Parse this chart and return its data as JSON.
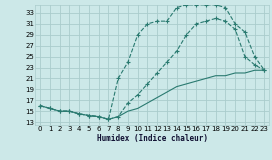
{
  "xlabel": "Humidex (Indice chaleur)",
  "bg_color": "#cce8e8",
  "grid_color": "#aacccc",
  "line_color": "#2a7a70",
  "xlim": [
    -0.5,
    23.5
  ],
  "ylim": [
    12.5,
    34.5
  ],
  "xticks": [
    0,
    1,
    2,
    3,
    4,
    5,
    6,
    7,
    8,
    9,
    10,
    11,
    12,
    13,
    14,
    15,
    16,
    17,
    18,
    19,
    20,
    21,
    22,
    23
  ],
  "yticks": [
    13,
    15,
    17,
    19,
    21,
    23,
    25,
    27,
    29,
    31,
    33
  ],
  "line1_x": [
    0,
    1,
    2,
    3,
    4,
    5,
    6,
    7,
    8,
    9,
    10,
    11,
    12,
    13,
    14,
    15,
    16,
    17,
    18,
    19,
    20,
    21,
    22,
    23
  ],
  "line1_y": [
    16,
    15.5,
    15,
    15,
    14.5,
    14.2,
    14,
    13.5,
    14,
    16.5,
    18,
    20,
    22,
    24,
    26,
    29,
    31,
    31.5,
    32,
    31.5,
    30,
    25,
    23.5,
    22.5
  ],
  "line2_x": [
    0,
    1,
    2,
    3,
    4,
    5,
    6,
    7,
    8,
    9,
    10,
    11,
    12,
    13,
    14,
    15,
    16,
    17,
    18,
    19,
    20,
    21,
    22,
    23
  ],
  "line2_y": [
    16,
    15.5,
    15,
    15,
    14.5,
    14.2,
    14,
    13.5,
    21,
    24,
    29,
    31,
    31.5,
    31.5,
    34,
    34.5,
    34.5,
    34.5,
    34.5,
    34,
    31,
    29.5,
    25,
    22.5
  ],
  "line3_x": [
    0,
    1,
    2,
    3,
    4,
    5,
    6,
    7,
    8,
    9,
    10,
    11,
    12,
    13,
    14,
    15,
    16,
    17,
    18,
    19,
    20,
    21,
    22,
    23
  ],
  "line3_y": [
    16,
    15.5,
    15,
    15,
    14.5,
    14.2,
    14,
    13.5,
    14,
    15,
    15.5,
    16.5,
    17.5,
    18.5,
    19.5,
    20,
    20.5,
    21,
    21.5,
    21.5,
    22,
    22,
    22.5,
    22.5
  ]
}
